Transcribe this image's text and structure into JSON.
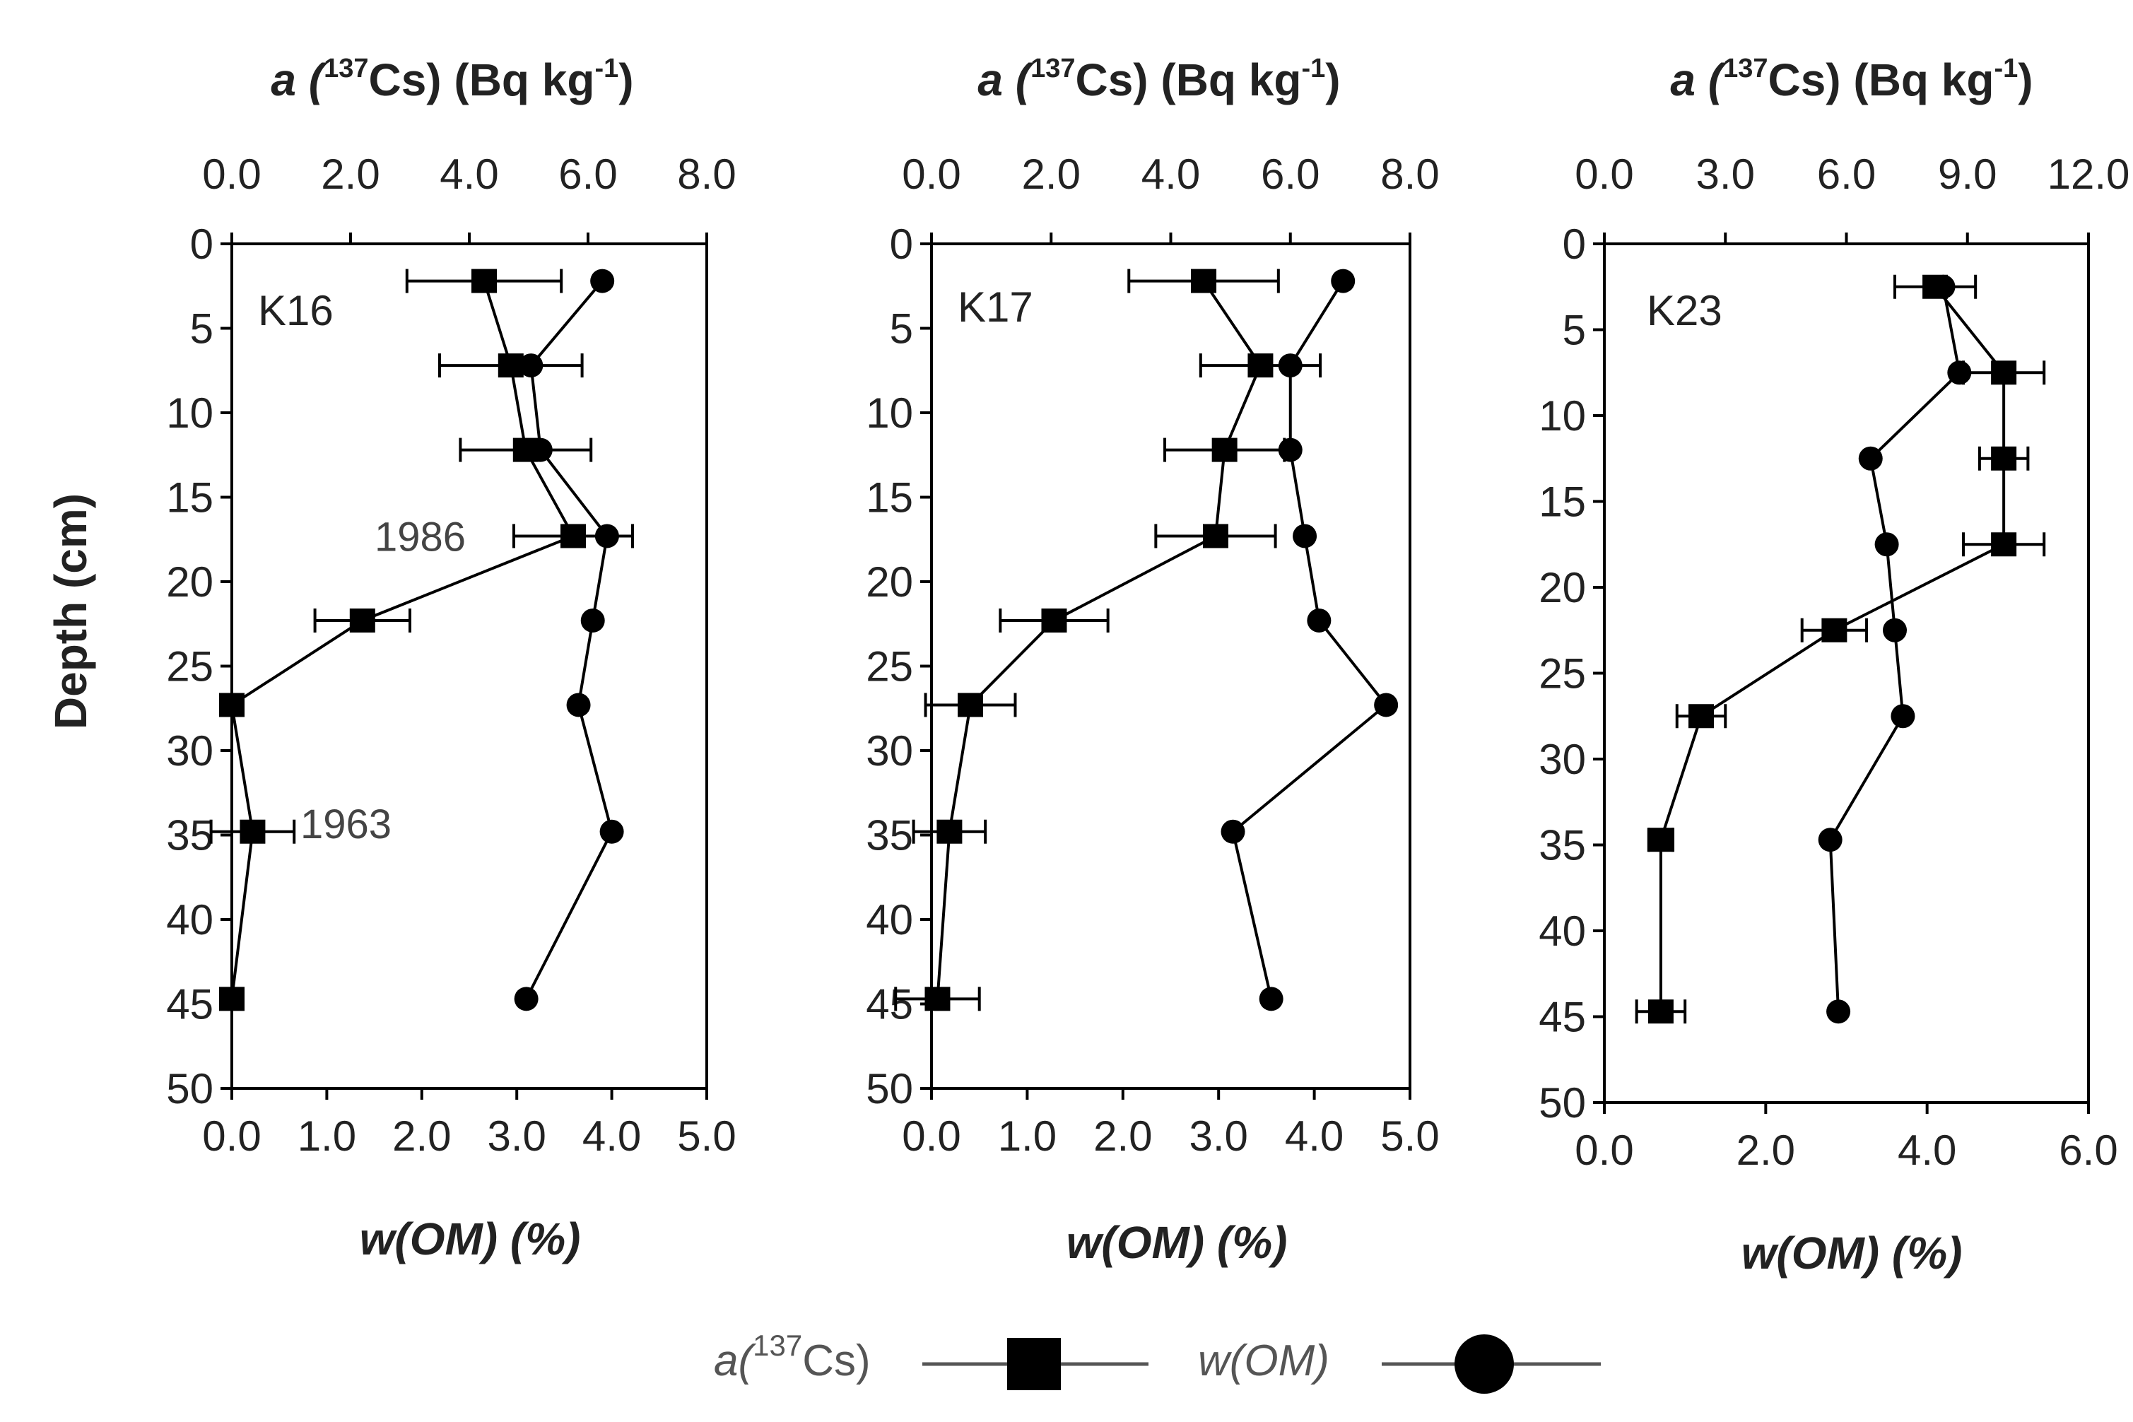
{
  "legend": {
    "cs_label_pre": "a(",
    "cs_label_sup": "137",
    "cs_label_post": "Cs)",
    "om_label": "w(OM)"
  },
  "chart_data": [
    {
      "type": "line",
      "panel": "K16",
      "title_top_pre": "a (",
      "title_top_sup1": "137",
      "title_top_mid": "Cs) (Bq kg",
      "title_top_sup2": "-1",
      "title_top_end": ")",
      "xlabel_bottom": "w(OM) (%)",
      "ylabel": "Depth (cm)",
      "ylim": [
        0,
        50
      ],
      "yticks": [
        "0",
        "5",
        "10",
        "15",
        "20",
        "25",
        "30",
        "35",
        "40",
        "45",
        "50"
      ],
      "xlim_top": [
        0,
        8
      ],
      "xticks_top": [
        "0.0",
        "2.0",
        "4.0",
        "6.0",
        "8.0"
      ],
      "xlim_bottom": [
        0,
        5
      ],
      "xticks_bottom": [
        "0.0",
        "1.0",
        "2.0",
        "3.0",
        "4.0",
        "5.0"
      ],
      "series": [
        {
          "name": "a(137Cs)",
          "marker": "square",
          "points": [
            {
              "x": 4.25,
              "depth": 2.2,
              "err": 1.3
            },
            {
              "x": 4.7,
              "depth": 7.2,
              "err": 1.2
            },
            {
              "x": 4.95,
              "depth": 12.2,
              "err": 1.1
            },
            {
              "x": 5.75,
              "depth": 17.3,
              "err": 1.0
            },
            {
              "x": 2.2,
              "depth": 22.3,
              "err": 0.8
            },
            {
              "x": 0.0,
              "depth": 27.3,
              "err": 0
            },
            {
              "x": 0.35,
              "depth": 34.8,
              "err": 0.7
            },
            {
              "x": 0.0,
              "depth": 44.7,
              "err": 0
            }
          ]
        },
        {
          "name": "w(OM)",
          "marker": "circle",
          "points": [
            {
              "x": 3.9,
              "depth": 2.2
            },
            {
              "x": 3.15,
              "depth": 7.2
            },
            {
              "x": 3.25,
              "depth": 12.2
            },
            {
              "x": 3.95,
              "depth": 17.3
            },
            {
              "x": 3.8,
              "depth": 22.3
            },
            {
              "x": 3.65,
              "depth": 27.3
            },
            {
              "x": 4.0,
              "depth": 34.8
            },
            {
              "x": 3.1,
              "depth": 44.7
            }
          ]
        }
      ],
      "annotations": [
        {
          "text": "1986",
          "depth": 17.3
        },
        {
          "text": "1963",
          "depth": 34.3
        }
      ]
    },
    {
      "type": "line",
      "panel": "K17",
      "title_top_pre": "a (",
      "title_top_sup1": "137",
      "title_top_mid": "Cs) (Bq kg",
      "title_top_sup2": "-1",
      "title_top_end": ")",
      "xlabel_bottom": "w(OM) (%)",
      "ylabel": "Depth (cm)",
      "ylim": [
        0,
        50
      ],
      "yticks": [
        "0",
        "5",
        "10",
        "15",
        "20",
        "25",
        "30",
        "35",
        "40",
        "45",
        "50"
      ],
      "xlim_top": [
        0,
        8
      ],
      "xticks_top": [
        "0.0",
        "2.0",
        "4.0",
        "6.0",
        "8.0"
      ],
      "xlim_bottom": [
        0,
        5
      ],
      "xticks_bottom": [
        "0.0",
        "1.0",
        "2.0",
        "3.0",
        "4.0",
        "5.0"
      ],
      "series": [
        {
          "name": "a(137Cs)",
          "marker": "square",
          "points": [
            {
              "x": 4.55,
              "depth": 2.2,
              "err": 1.25
            },
            {
              "x": 5.5,
              "depth": 7.2,
              "err": 1.0
            },
            {
              "x": 4.9,
              "depth": 12.2,
              "err": 1.0
            },
            {
              "x": 4.75,
              "depth": 17.3,
              "err": 1.0
            },
            {
              "x": 2.05,
              "depth": 22.3,
              "err": 0.9
            },
            {
              "x": 0.65,
              "depth": 27.3,
              "err": 0.75
            },
            {
              "x": 0.3,
              "depth": 34.8,
              "err": 0.6
            },
            {
              "x": 0.1,
              "depth": 44.7,
              "err": 0.7
            }
          ]
        },
        {
          "name": "w(OM)",
          "marker": "circle",
          "points": [
            {
              "x": 4.3,
              "depth": 2.2
            },
            {
              "x": 3.75,
              "depth": 7.2
            },
            {
              "x": 3.75,
              "depth": 12.2
            },
            {
              "x": 3.9,
              "depth": 17.3
            },
            {
              "x": 4.05,
              "depth": 22.3
            },
            {
              "x": 4.75,
              "depth": 27.3
            },
            {
              "x": 3.15,
              "depth": 34.8
            },
            {
              "x": 3.55,
              "depth": 44.7
            }
          ]
        }
      ],
      "annotations": []
    },
    {
      "type": "line",
      "panel": "K23",
      "title_top_pre": "a (",
      "title_top_sup1": "137",
      "title_top_mid": "Cs) (Bq kg",
      "title_top_sup2": "-1",
      "title_top_end": ")",
      "xlabel_bottom": "w(OM) (%)",
      "ylabel": "Depth (cm)",
      "ylim": [
        0,
        50
      ],
      "yticks": [
        "0",
        "5",
        "10",
        "15",
        "20",
        "25",
        "30",
        "35",
        "40",
        "45",
        "50"
      ],
      "xlim_top": [
        0,
        12
      ],
      "xticks_top": [
        "0.0",
        "3.0",
        "6.0",
        "9.0",
        "12.0"
      ],
      "xlim_bottom": [
        0,
        6
      ],
      "xticks_bottom": [
        "0.0",
        "2.0",
        "4.0",
        "6.0"
      ],
      "series": [
        {
          "name": "a(137Cs)",
          "marker": "square",
          "points": [
            {
              "x": 8.2,
              "depth": 2.5,
              "err": 1.0
            },
            {
              "x": 9.9,
              "depth": 7.5,
              "err": 1.0
            },
            {
              "x": 9.9,
              "depth": 12.5,
              "err": 0.6
            },
            {
              "x": 9.9,
              "depth": 17.5,
              "err": 1.0
            },
            {
              "x": 5.7,
              "depth": 22.5,
              "err": 0.8
            },
            {
              "x": 2.4,
              "depth": 27.5,
              "err": 0.6
            },
            {
              "x": 1.4,
              "depth": 34.7,
              "err": 0.3
            },
            {
              "x": 1.4,
              "depth": 44.7,
              "err": 0.6
            }
          ]
        },
        {
          "name": "w(OM)",
          "marker": "circle",
          "points": [
            {
              "x": 4.2,
              "depth": 2.5
            },
            {
              "x": 4.4,
              "depth": 7.5
            },
            {
              "x": 3.3,
              "depth": 12.5
            },
            {
              "x": 3.5,
              "depth": 17.5
            },
            {
              "x": 3.6,
              "depth": 22.5
            },
            {
              "x": 3.7,
              "depth": 27.5
            },
            {
              "x": 2.8,
              "depth": 34.7
            },
            {
              "x": 2.9,
              "depth": 44.7
            }
          ]
        }
      ],
      "annotations": []
    }
  ]
}
